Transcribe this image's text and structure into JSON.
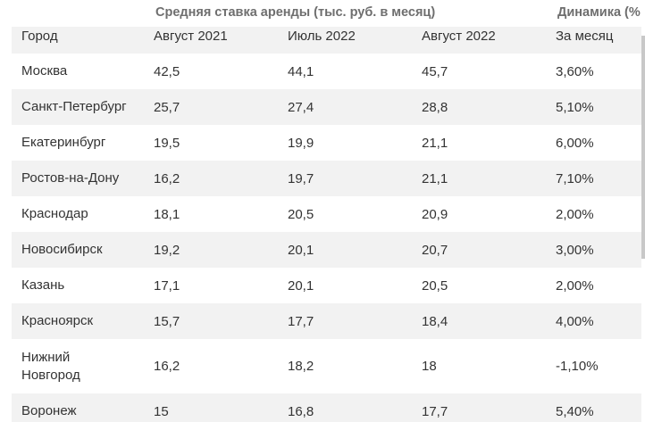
{
  "group_headers": {
    "rent": "Средняя ставка аренды (тыс. руб. в месяц)",
    "dynamics": "Динамика (%"
  },
  "columns": [
    "Город",
    "Август 2021",
    "Июль 2022",
    "Август 2022",
    "За месяц"
  ],
  "rows": [
    [
      "Москва",
      "42,5",
      "44,1",
      "45,7",
      "3,60%"
    ],
    [
      "Санкт-Петербург",
      "25,7",
      "27,4",
      "28,8",
      "5,10%"
    ],
    [
      "Екатеринбург",
      "19,5",
      "19,9",
      "21,1",
      "6,00%"
    ],
    [
      "Ростов-на-Дону",
      "16,2",
      "19,7",
      "21,1",
      "7,10%"
    ],
    [
      "Краснодар",
      "18,1",
      "20,5",
      "20,9",
      "2,00%"
    ],
    [
      "Новосибирск",
      "19,2",
      "20,1",
      "20,7",
      "3,00%"
    ],
    [
      "Казань",
      "17,1",
      "20,1",
      "20,5",
      "2,00%"
    ],
    [
      "Красноярск",
      "15,7",
      "17,7",
      "18,4",
      "4,00%"
    ],
    [
      "Нижний Новгород",
      "16,2",
      "18,2",
      "18",
      "-1,10%"
    ],
    [
      "Воронеж",
      "15",
      "16,8",
      "17,7",
      "5,40%"
    ]
  ]
}
